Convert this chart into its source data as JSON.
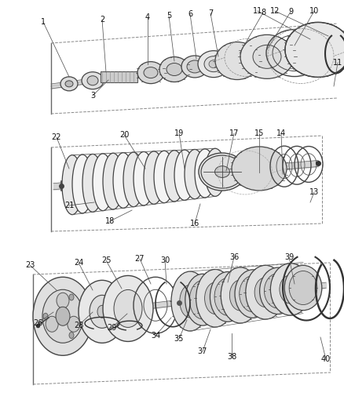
{
  "bg_color": "#ffffff",
  "line_color": "#333333",
  "fig_width": 4.38,
  "fig_height": 5.33,
  "dpi": 100,
  "label_fontsize": 7,
  "s1_labels": [
    [
      "1",
      55,
      28,
      88,
      98
    ],
    [
      "2",
      130,
      25,
      135,
      92
    ],
    [
      "3",
      118,
      122,
      138,
      102
    ],
    [
      "4",
      188,
      22,
      188,
      82
    ],
    [
      "5",
      215,
      20,
      222,
      78
    ],
    [
      "6",
      242,
      18,
      250,
      75
    ],
    [
      "7",
      268,
      17,
      278,
      72
    ],
    [
      "8",
      335,
      16,
      305,
      68
    ],
    [
      "9",
      370,
      15,
      340,
      63
    ],
    [
      "10",
      400,
      14,
      375,
      58
    ],
    [
      "11",
      328,
      14,
      395,
      50
    ],
    [
      "12",
      350,
      14,
      418,
      46
    ],
    [
      "11",
      430,
      80,
      425,
      110
    ]
  ],
  "s2_labels": [
    [
      "22",
      72,
      175,
      88,
      215
    ],
    [
      "20",
      158,
      172,
      185,
      215
    ],
    [
      "19",
      228,
      170,
      235,
      215
    ],
    [
      "21",
      88,
      262,
      120,
      258
    ],
    [
      "18",
      140,
      282,
      168,
      268
    ],
    [
      "17",
      298,
      170,
      288,
      218
    ],
    [
      "15",
      330,
      170,
      330,
      220
    ],
    [
      "14",
      358,
      170,
      360,
      222
    ],
    [
      "16",
      248,
      285,
      255,
      260
    ],
    [
      "13",
      400,
      245,
      395,
      258
    ]
  ],
  "s3_labels": [
    [
      "23",
      38,
      338,
      72,
      370
    ],
    [
      "24",
      100,
      335,
      118,
      370
    ],
    [
      "25",
      135,
      332,
      155,
      368
    ],
    [
      "26",
      48,
      412,
      68,
      398
    ],
    [
      "27",
      178,
      330,
      192,
      362
    ],
    [
      "28",
      100,
      415,
      118,
      398
    ],
    [
      "29",
      142,
      418,
      162,
      400
    ],
    [
      "30",
      210,
      332,
      212,
      362
    ],
    [
      "34",
      198,
      428,
      218,
      405
    ],
    [
      "35",
      228,
      432,
      238,
      408
    ],
    [
      "36",
      298,
      328,
      290,
      360
    ],
    [
      "37",
      258,
      448,
      268,
      420
    ],
    [
      "38",
      295,
      455,
      295,
      425
    ],
    [
      "39",
      368,
      328,
      375,
      362
    ],
    [
      "40",
      415,
      458,
      408,
      430
    ]
  ]
}
